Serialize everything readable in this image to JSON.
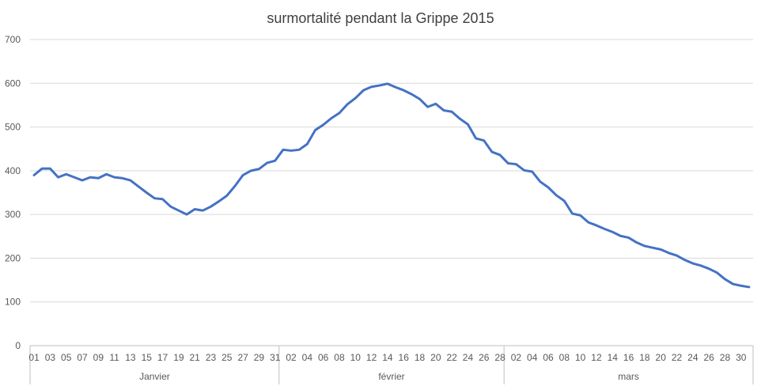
{
  "chart_data": {
    "type": "line",
    "title": "surmortalité pendant la Grippe 2015",
    "xlabel": "",
    "ylabel": "",
    "ylim": [
      0,
      700
    ],
    "yticks": [
      0,
      100,
      200,
      300,
      400,
      500,
      600,
      700
    ],
    "grid": true,
    "legend": "none",
    "colors": {
      "series": "#4472c4",
      "grid": "#d9d9d9",
      "axis": "#bfbfbf",
      "text": "#595959",
      "title": "#404040"
    },
    "months": [
      {
        "name": "Janvier",
        "days": 31,
        "labels": [
          "01",
          "03",
          "05",
          "07",
          "09",
          "11",
          "13",
          "15",
          "17",
          "19",
          "21",
          "23",
          "25",
          "27",
          "29",
          "31"
        ]
      },
      {
        "name": "février",
        "days": 28,
        "labels": [
          "02",
          "04",
          "06",
          "08",
          "10",
          "12",
          "14",
          "16",
          "18",
          "20",
          "22",
          "24",
          "26",
          "28"
        ]
      },
      {
        "name": "mars",
        "days": 31,
        "labels": [
          "02",
          "04",
          "06",
          "08",
          "10",
          "12",
          "14",
          "16",
          "18",
          "20",
          "22",
          "24",
          "26",
          "28",
          "30"
        ]
      }
    ],
    "series": [
      {
        "values": [
          390,
          405,
          405,
          385,
          392,
          385,
          378,
          385,
          383,
          392,
          385,
          383,
          378,
          364,
          350,
          337,
          335,
          318,
          309,
          300,
          312,
          309,
          318,
          330,
          343,
          365,
          390,
          400,
          404,
          418,
          423,
          448,
          446,
          448,
          461,
          493,
          505,
          520,
          532,
          552,
          566,
          584,
          592,
          595,
          599,
          591,
          584,
          575,
          564,
          546,
          553,
          538,
          535,
          519,
          506,
          474,
          469,
          443,
          436,
          417,
          415,
          401,
          398,
          375,
          362,
          344,
          331,
          302,
          298,
          282,
          275,
          267,
          260,
          251,
          247,
          236,
          228,
          224,
          220,
          212,
          206,
          196,
          188,
          183,
          176,
          167,
          152,
          141,
          137,
          134
        ]
      }
    ]
  }
}
